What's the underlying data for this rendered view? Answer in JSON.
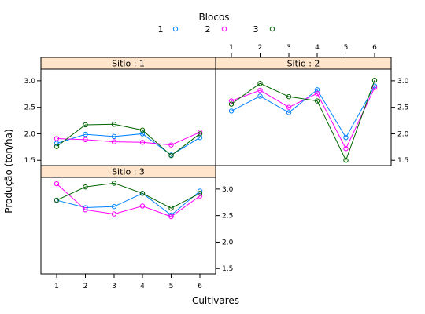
{
  "chart_data": {
    "type": "line",
    "legend": {
      "title": "Blocos",
      "position": "top",
      "items": [
        {
          "label": "1",
          "color": "#0080ff"
        },
        {
          "label": "2",
          "color": "#ff00ff"
        },
        {
          "label": "3",
          "color": "#006400"
        }
      ]
    },
    "xlabel": "Cultivares",
    "ylabel": "Produção (ton/ha)",
    "categories": [
      "1",
      "2",
      "3",
      "4",
      "5",
      "6"
    ],
    "y_ticks": [
      "1.5",
      "2.0",
      "2.5",
      "3.0"
    ],
    "ylim": [
      1.4,
      3.22
    ],
    "grid": false,
    "panels": [
      {
        "strip": "Sitio : 1",
        "series": [
          {
            "name": "1",
            "color": "#0080ff",
            "values": [
              1.82,
              1.99,
              1.95,
              2.0,
              1.6,
              1.93
            ]
          },
          {
            "name": "2",
            "color": "#ff00ff",
            "values": [
              1.91,
              1.89,
              1.85,
              1.84,
              1.79,
              2.03
            ]
          },
          {
            "name": "3",
            "color": "#006400",
            "values": [
              1.76,
              2.17,
              2.18,
              2.07,
              1.59,
              2.0
            ]
          }
        ]
      },
      {
        "strip": "Sitio : 2",
        "series": [
          {
            "name": "1",
            "color": "#0080ff",
            "values": [
              2.43,
              2.71,
              2.4,
              2.83,
              1.93,
              2.9
            ]
          },
          {
            "name": "2",
            "color": "#ff00ff",
            "values": [
              2.62,
              2.82,
              2.5,
              2.76,
              1.72,
              2.87
            ]
          },
          {
            "name": "3",
            "color": "#006400",
            "values": [
              2.56,
              2.95,
              2.7,
              2.62,
              1.5,
              3.01
            ]
          }
        ]
      },
      {
        "strip": "Sitio : 3",
        "series": [
          {
            "name": "1",
            "color": "#0080ff",
            "values": [
              2.79,
              2.65,
              2.67,
              2.92,
              2.51,
              2.96
            ]
          },
          {
            "name": "2",
            "color": "#ff00ff",
            "values": [
              3.1,
              2.61,
              2.53,
              2.68,
              2.48,
              2.87
            ]
          },
          {
            "name": "3",
            "color": "#006400",
            "values": [
              2.79,
              3.04,
              3.11,
              2.92,
              2.64,
              2.92
            ]
          }
        ]
      }
    ]
  }
}
